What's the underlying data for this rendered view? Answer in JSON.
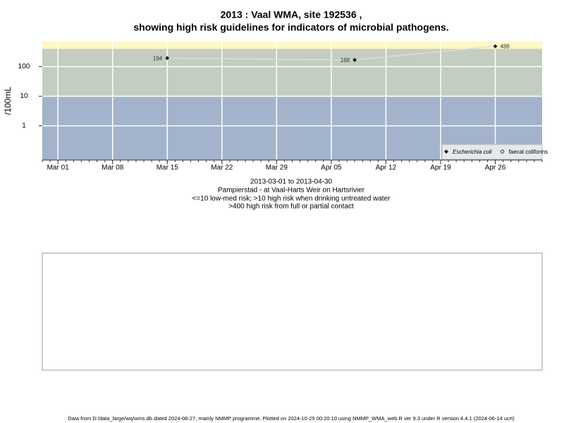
{
  "chart_data": {
    "type": "line",
    "title": [
      "2013 : Vaal WMA, site 192536 ,",
      "showing high risk guidelines for indicators of microbial pathogens."
    ],
    "y_label": "/100mL",
    "subtitle": [
      "2013-03-01 to 2013-04-30",
      "Pampierstad - at Vaal-Harts Weir on Hartsrivier",
      "<=10 low-med risk; >10 high risk when drinking untreated water",
      ">400 high risk from full or partial contact"
    ],
    "x": [
      "2013-03-15",
      "2013-04-08",
      "2013-04-26"
    ],
    "series": [
      {
        "name": "Escherichia coli",
        "color": "#222222",
        "line_color": "#dddddd",
        "marker": "diamond",
        "values": [
          194,
          168,
          488
        ]
      },
      {
        "name": "faecal coliforms",
        "color": "#222222",
        "line_color": "#dddddd",
        "marker": "circle",
        "values": [
          null,
          null,
          null
        ]
      }
    ],
    "xlim": [
      "2013-02-27",
      "2013-05-02"
    ],
    "xticks": [
      {
        "value": "2013-03-01",
        "label": "Mar 01"
      },
      {
        "value": "2013-03-08",
        "label": "Mar 08"
      },
      {
        "value": "2013-03-15",
        "label": "Mar 15"
      },
      {
        "value": "2013-03-22",
        "label": "Mar 22"
      },
      {
        "value": "2013-03-29",
        "label": "Mar 29"
      },
      {
        "value": "2013-04-05",
        "label": "Apr 05"
      },
      {
        "value": "2013-04-12",
        "label": "Apr 12"
      },
      {
        "value": "2013-04-19",
        "label": "Apr 19"
      },
      {
        "value": "2013-04-26",
        "label": "Apr 26"
      }
    ],
    "ylim": [
      0.07,
      700
    ],
    "yticks": [
      1,
      10,
      100
    ],
    "log_y": true,
    "grid": true,
    "band_limits": [
      10,
      400
    ],
    "band_colors": [
      "#a3b3cb",
      "#c3cdc1",
      "#fff7c4"
    ],
    "legend": "bottom-right",
    "footer": "Data from D:/data_large/wq/wms.db dated 2024-08-27, mainly NMMP programme. Plotted on 2024-10-25 00:20:10 using NMMP_WMA_web.R ver 9.3 under R version 4.4.1 (2024-06-14 ucrt)"
  }
}
